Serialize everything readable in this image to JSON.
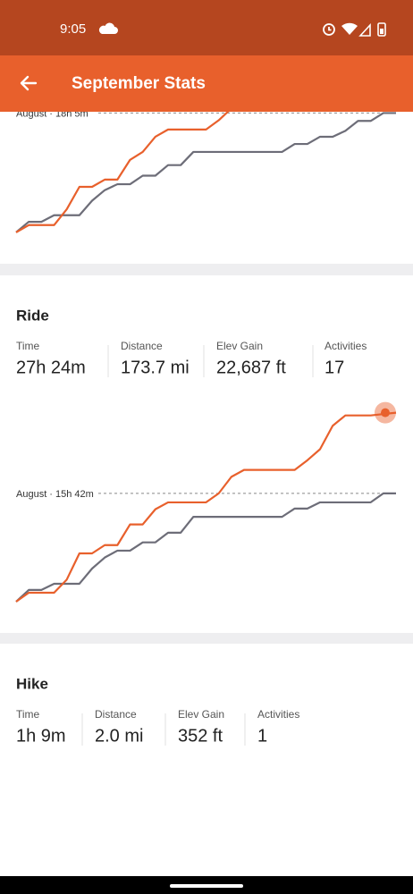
{
  "status_bar": {
    "time": "9:05"
  },
  "header": {
    "title": "September Stats"
  },
  "chart_data": [
    {
      "type": "line",
      "annotation": "August · 18h 5m",
      "xlim": [
        0,
        30
      ],
      "ylim": [
        -1.1,
        18.7
      ],
      "series": [
        {
          "color": "#6d6d78",
          "x": [
            0,
            1,
            2,
            3,
            5,
            6,
            7,
            8,
            9,
            10,
            11,
            12,
            13,
            14,
            21,
            22,
            23,
            24,
            25,
            26,
            27,
            28,
            29,
            30
          ],
          "values": [
            0,
            1.6,
            1.6,
            2.6,
            2.6,
            4.8,
            6.4,
            7.3,
            7.3,
            8.6,
            8.6,
            10.2,
            10.2,
            12.2,
            12.2,
            13.4,
            13.4,
            14.5,
            14.5,
            15.4,
            16.9,
            16.9,
            18.1,
            18.1
          ]
        },
        {
          "color": "#e8602c",
          "x": [
            0,
            1,
            3,
            4,
            5,
            6,
            7,
            8,
            9,
            10,
            11,
            12,
            15,
            16,
            17
          ],
          "values": [
            0,
            1.1,
            1.1,
            3.5,
            6.9,
            6.9,
            8.0,
            8.0,
            11.0,
            12.2,
            14.5,
            15.6,
            15.6,
            17.0,
            18.8
          ]
        }
      ]
    },
    {
      "type": "line",
      "annotation": "August · 15h 42m",
      "xlim": [
        0,
        30
      ],
      "ylim": [
        -2.2,
        30.2
      ],
      "series": [
        {
          "color": "#6d6d78",
          "x": [
            0,
            1,
            2,
            3,
            5,
            6,
            7,
            8,
            9,
            10,
            11,
            12,
            13,
            14,
            21,
            22,
            23,
            24,
            28,
            29,
            30
          ],
          "values": [
            0,
            1.7,
            1.7,
            2.6,
            2.6,
            4.8,
            6.4,
            7.4,
            7.4,
            8.6,
            8.6,
            10.0,
            10.0,
            12.3,
            12.3,
            13.5,
            13.5,
            14.4,
            14.4,
            15.7,
            15.7
          ]
        },
        {
          "color": "#e8602c",
          "x": [
            0,
            1,
            3,
            4,
            5,
            6,
            7,
            8,
            9,
            10,
            11,
            12,
            15,
            16,
            17,
            18,
            22,
            23,
            24,
            25,
            26,
            28,
            30
          ],
          "values": [
            0,
            1.3,
            1.3,
            3.2,
            7.0,
            7.0,
            8.2,
            8.2,
            11.2,
            11.2,
            13.4,
            14.4,
            14.4,
            15.7,
            18.1,
            19.1,
            19.1,
            20.5,
            22.1,
            25.5,
            27.0,
            27.0,
            27.4
          ]
        }
      ]
    }
  ],
  "sections": [
    {
      "title": "Ride",
      "stats": [
        {
          "label": "Time",
          "value": "27h 24m"
        },
        {
          "label": "Distance",
          "value": "173.7 mi"
        },
        {
          "label": "Elev Gain",
          "value": "22,687 ft"
        },
        {
          "label": "Activities",
          "value": "17"
        }
      ]
    },
    {
      "title": "Hike",
      "stats": [
        {
          "label": "Time",
          "value": "1h 9m"
        },
        {
          "label": "Distance",
          "value": "2.0 mi"
        },
        {
          "label": "Elev Gain",
          "value": "352 ft"
        },
        {
          "label": "Activities",
          "value": "1"
        }
      ]
    }
  ]
}
